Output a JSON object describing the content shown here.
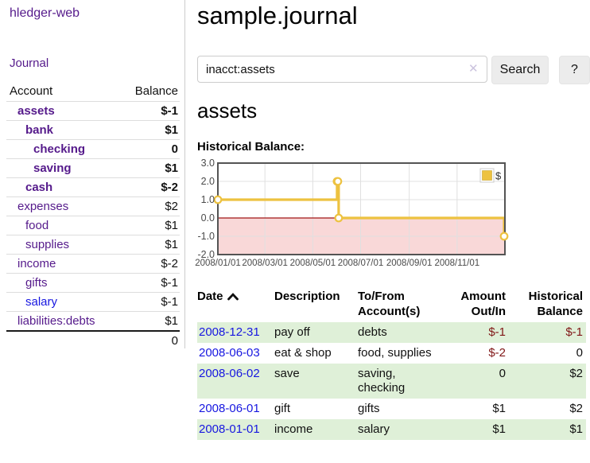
{
  "colors": {
    "link_purple": "#551a8b",
    "link_blue": "#1717e0",
    "negative_strong": "#8b1111",
    "negative_soft": "#b36b6b",
    "negative_table": "#801717",
    "row_stripe_green": "#dff0d8"
  },
  "sidebar": {
    "brand": "hledger-web",
    "nav": {
      "journal": "Journal"
    },
    "accounts": {
      "columns": [
        "Account",
        "Balance"
      ],
      "rows": [
        {
          "account": "assets",
          "balance": "$-1",
          "indent": 0,
          "in_account": true,
          "negative": "strong",
          "link_color": "purple"
        },
        {
          "account": "bank",
          "balance": "$1",
          "indent": 1,
          "in_account": true,
          "negative": "none",
          "link_color": "purple"
        },
        {
          "account": "checking",
          "balance": "0",
          "indent": 2,
          "in_account": true,
          "negative": "none",
          "link_color": "purple"
        },
        {
          "account": "saving",
          "balance": "$1",
          "indent": 2,
          "in_account": true,
          "negative": "none",
          "link_color": "purple"
        },
        {
          "account": "cash",
          "balance": "$-2",
          "indent": 1,
          "in_account": true,
          "negative": "strong",
          "link_color": "purple"
        },
        {
          "account": "expenses",
          "balance": "$2",
          "indent": 0,
          "in_account": false,
          "negative": "none",
          "link_color": "purple"
        },
        {
          "account": "food",
          "balance": "$1",
          "indent": 1,
          "in_account": false,
          "negative": "none",
          "link_color": "purple"
        },
        {
          "account": "supplies",
          "balance": "$1",
          "indent": 1,
          "in_account": false,
          "negative": "none",
          "link_color": "purple"
        },
        {
          "account": "income",
          "balance": "$-2",
          "indent": 0,
          "in_account": false,
          "negative": "soft",
          "link_color": "purple"
        },
        {
          "account": "gifts",
          "balance": "$-1",
          "indent": 1,
          "in_account": false,
          "negative": "soft",
          "link_color": "purple"
        },
        {
          "account": "salary",
          "balance": "$-1",
          "indent": 1,
          "in_account": false,
          "negative": "soft",
          "link_color": "blue"
        },
        {
          "account": "liabilities:debts",
          "balance": "$1",
          "indent": 0,
          "in_account": false,
          "negative": "none",
          "link_color": "purple"
        }
      ],
      "total": "0"
    }
  },
  "main": {
    "title": "sample.journal",
    "search": {
      "value": "inacct:assets",
      "clear_icon": "✕",
      "button_label": "Search",
      "help_label": "?"
    },
    "account_heading": "assets",
    "register": {
      "headers": [
        "Date",
        "Description",
        "To/From Account(s)",
        "Amount Out/In",
        "Historical Balance"
      ],
      "sort_column": "Date",
      "sort_direction": "ascending",
      "rows": [
        {
          "date": "2008-12-31",
          "description": "pay off",
          "accounts": "debts",
          "amount": "$-1",
          "balance": "$-1",
          "amount_negative": true,
          "balance_negative": true
        },
        {
          "date": "2008-06-03",
          "description": "eat & shop",
          "accounts": "food, supplies",
          "amount": "$-2",
          "balance": "0",
          "amount_negative": true,
          "balance_negative": false
        },
        {
          "date": "2008-06-02",
          "description": "save",
          "accounts": "saving, checking",
          "amount": "0",
          "balance": "$2",
          "amount_negative": false,
          "balance_negative": false
        },
        {
          "date": "2008-06-01",
          "description": "gift",
          "accounts": "gifts",
          "amount": "$1",
          "balance": "$2",
          "amount_negative": false,
          "balance_negative": false
        },
        {
          "date": "2008-01-01",
          "description": "income",
          "accounts": "salary",
          "amount": "$1",
          "balance": "$1",
          "amount_negative": false,
          "balance_negative": false
        }
      ]
    }
  },
  "chart_data": {
    "type": "line",
    "step": true,
    "title": "Historical Balance:",
    "series": [
      {
        "name": "$",
        "points": [
          [
            "2008-01-01",
            1
          ],
          [
            "2008-06-01",
            2
          ],
          [
            "2008-06-02",
            2
          ],
          [
            "2008-06-03",
            0
          ],
          [
            "2008-12-31",
            -1
          ]
        ]
      }
    ],
    "x_range": [
      "2008-01-01",
      "2009-01-01"
    ],
    "ylim": [
      -2,
      3
    ],
    "y_ticks": [
      {
        "v": 3,
        "label": "3.0"
      },
      {
        "v": 2,
        "label": "2.0"
      },
      {
        "v": 1,
        "label": "1.0"
      },
      {
        "v": 0,
        "label": "0.0"
      },
      {
        "v": -1,
        "label": "-1.0"
      },
      {
        "v": -2,
        "label": "-2.0"
      }
    ],
    "x_ticks": [
      {
        "date": "2008-01-01",
        "label": "2008/01/01"
      },
      {
        "date": "2008-03-01",
        "label": "2008/03/01"
      },
      {
        "date": "2008-05-01",
        "label": "2008/05/01"
      },
      {
        "date": "2008-07-01",
        "label": "2008/07/01"
      },
      {
        "date": "2008-09-01",
        "label": "2008/09/01"
      },
      {
        "date": "2008-11-01",
        "label": "2008/11/01"
      }
    ],
    "legend": [
      {
        "label": "$",
        "color": "#edc240"
      }
    ],
    "legend_position": "top-right",
    "grid": true,
    "colors": {
      "line": "#edc240",
      "marker_fill": "#ffffff",
      "negative_region": "#f9d8d8",
      "zero_line": "#a11515",
      "grid": "#e0e0e0",
      "border": "#545454",
      "tick_text": "#4a4a4a"
    }
  }
}
